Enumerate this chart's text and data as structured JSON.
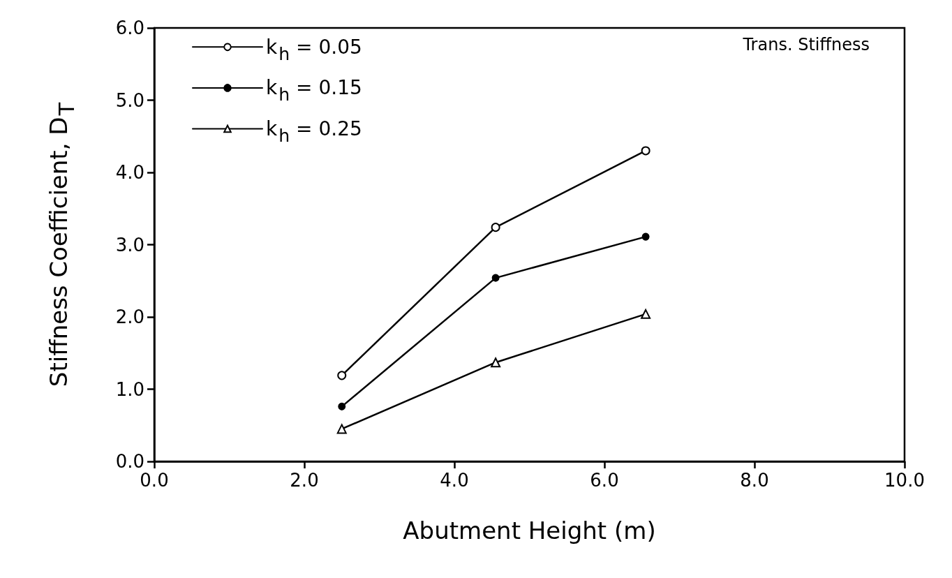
{
  "chart_data": {
    "type": "line",
    "xlabel": "Abutment Height (m)",
    "ylabel": "Stiffness Coefficient, D$_{T}$",
    "annotations": [
      "Trans. Stiffness"
    ],
    "x": [
      2.5,
      4.55,
      6.55
    ],
    "series": [
      {
        "name": "k$_{h}$ = 0.05",
        "color": "#000000",
        "marker": "circle",
        "values": [
          1.19,
          3.24,
          4.3
        ]
      },
      {
        "name": "k$_{h}$ = 0.15",
        "color": "#000000",
        "marker": "filled-circle",
        "values": [
          0.76,
          2.54,
          3.11
        ]
      },
      {
        "name": "k$_{h}$ = 0.25",
        "color": "#000000",
        "marker": "triangle",
        "values": [
          0.45,
          1.37,
          2.04
        ]
      }
    ],
    "xlim": [
      0,
      10
    ],
    "xticks": [
      {
        "value": 0,
        "label": "0.0"
      },
      {
        "value": 2,
        "label": "2.0"
      },
      {
        "value": 4,
        "label": "4.0"
      },
      {
        "value": 6,
        "label": "6.0"
      },
      {
        "value": 8,
        "label": "8.0"
      },
      {
        "value": 10,
        "label": "10.0"
      }
    ],
    "ylim": [
      0,
      6
    ],
    "yticks": [
      {
        "value": 0,
        "label": "0.0"
      },
      {
        "value": 1,
        "label": "1.0"
      },
      {
        "value": 2,
        "label": "2.0"
      },
      {
        "value": 3,
        "label": "3.0"
      },
      {
        "value": 4,
        "label": "4.0"
      },
      {
        "value": 5,
        "label": "5.0"
      },
      {
        "value": 6,
        "label": "6.0"
      }
    ],
    "grid": false,
    "legend": "top left",
    "line_style": "solid"
  }
}
